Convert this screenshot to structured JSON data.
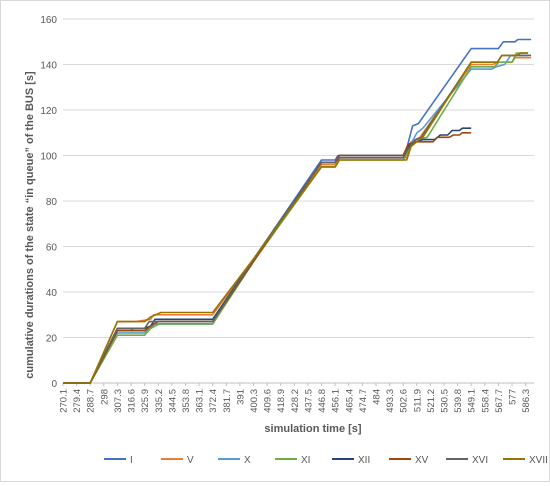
{
  "chart_data": {
    "type": "line",
    "title": "",
    "xlabel": "simulation time [s]",
    "ylabel": "cumulative durations of the state “in queue” of the BUS [s]",
    "ylim": [
      0,
      160
    ],
    "yticks": [
      "0",
      "20",
      "40",
      "60",
      "80",
      "100",
      "120",
      "140",
      "160"
    ],
    "grid": "horizontal",
    "legend_position": "bottom",
    "xlim": [
      270.1,
      592
    ],
    "xticks": [
      "270.1",
      "279.4",
      "288.7",
      "298",
      "307.3",
      "316.6",
      "325.9",
      "335.2",
      "344.5",
      "353.8",
      "363.1",
      "372.4",
      "381.7",
      "391",
      "400.3",
      "409.6",
      "418.9",
      "428.2",
      "437.5",
      "446.8",
      "456.1",
      "465.4",
      "474.7",
      "484",
      "493.3",
      "502.6",
      "511.9",
      "521.2",
      "530.5",
      "539.8",
      "549.1",
      "558.4",
      "567.7",
      "577",
      "586.3"
    ],
    "series": [
      {
        "name": "I",
        "color": "#4472C4",
        "points": [
          [
            270.1,
            0
          ],
          [
            288.7,
            0
          ],
          [
            307.3,
            23
          ],
          [
            316.6,
            23
          ],
          [
            318,
            24
          ],
          [
            330,
            24
          ],
          [
            332,
            26
          ],
          [
            372.4,
            26
          ],
          [
            402,
            56
          ],
          [
            446.8,
            98
          ],
          [
            456.1,
            98
          ],
          [
            458,
            100
          ],
          [
            502.6,
            100
          ],
          [
            505,
            103
          ],
          [
            509,
            113
          ],
          [
            513,
            114
          ],
          [
            549.1,
            147
          ],
          [
            567.7,
            147
          ],
          [
            571,
            150
          ],
          [
            579,
            150
          ],
          [
            581,
            151
          ],
          [
            590,
            151
          ]
        ]
      },
      {
        "name": "V",
        "color": "#ED7D31",
        "points": [
          [
            270.1,
            0
          ],
          [
            288.7,
            0
          ],
          [
            307.3,
            27
          ],
          [
            320,
            27
          ],
          [
            330,
            28
          ],
          [
            332,
            30
          ],
          [
            372.4,
            30
          ],
          [
            402,
            56
          ],
          [
            446.8,
            96
          ],
          [
            456.1,
            96
          ],
          [
            459,
            99
          ],
          [
            505,
            99
          ],
          [
            508,
            106
          ],
          [
            514,
            108
          ],
          [
            549.1,
            140
          ],
          [
            564,
            140
          ],
          [
            567,
            141
          ],
          [
            577,
            141
          ],
          [
            579,
            143
          ],
          [
            590,
            143
          ]
        ]
      },
      {
        "name": "X",
        "color": "#5B9BD5",
        "points": [
          [
            270.1,
            0
          ],
          [
            288.7,
            0
          ],
          [
            307.3,
            22
          ],
          [
            325.9,
            22
          ],
          [
            329,
            24
          ],
          [
            333,
            26
          ],
          [
            372.4,
            26
          ],
          [
            402,
            56
          ],
          [
            446.8,
            97
          ],
          [
            456.1,
            97
          ],
          [
            459,
            100
          ],
          [
            502.6,
            100
          ],
          [
            507,
            104
          ],
          [
            512,
            110
          ],
          [
            516,
            112
          ],
          [
            549.1,
            138
          ],
          [
            563,
            138
          ],
          [
            566,
            139
          ],
          [
            572,
            140
          ],
          [
            576,
            144
          ],
          [
            588,
            144
          ]
        ]
      },
      {
        "name": "XI",
        "color": "#70AD47",
        "points": [
          [
            270.1,
            0
          ],
          [
            288.7,
            0
          ],
          [
            307.3,
            21
          ],
          [
            325.9,
            21
          ],
          [
            330,
            24
          ],
          [
            336,
            26
          ],
          [
            372.4,
            26
          ],
          [
            402,
            55
          ],
          [
            446.8,
            95
          ],
          [
            456.1,
            95
          ],
          [
            459,
            98
          ],
          [
            502.6,
            98
          ],
          [
            507,
            103
          ],
          [
            511,
            107
          ],
          [
            519,
            108
          ],
          [
            549.1,
            139
          ],
          [
            565,
            139
          ],
          [
            568,
            141
          ],
          [
            577,
            141
          ],
          [
            580,
            145
          ],
          [
            588,
            145
          ]
        ]
      },
      {
        "name": "XII",
        "color": "#264478",
        "points": [
          [
            270.1,
            0
          ],
          [
            288.7,
            0
          ],
          [
            307.3,
            24
          ],
          [
            325.9,
            24
          ],
          [
            330,
            25
          ],
          [
            333,
            28
          ],
          [
            372.4,
            28
          ],
          [
            402,
            56
          ],
          [
            446.8,
            97
          ],
          [
            456.1,
            97
          ],
          [
            459,
            100
          ],
          [
            502.6,
            100
          ],
          [
            507,
            105
          ],
          [
            511,
            106
          ],
          [
            516,
            107
          ],
          [
            524,
            107
          ],
          [
            528,
            109
          ],
          [
            533,
            109
          ],
          [
            536,
            111
          ],
          [
            541,
            111
          ],
          [
            543,
            112
          ],
          [
            549.1,
            112
          ]
        ]
      },
      {
        "name": "XV",
        "color": "#9E480E",
        "points": [
          [
            270.1,
            0
          ],
          [
            288.7,
            0
          ],
          [
            307.3,
            23
          ],
          [
            325.9,
            23
          ],
          [
            330,
            25
          ],
          [
            335,
            27
          ],
          [
            372.4,
            27
          ],
          [
            402,
            55
          ],
          [
            446.8,
            97
          ],
          [
            456.1,
            97
          ],
          [
            459,
            100
          ],
          [
            502.6,
            100
          ],
          [
            506,
            105
          ],
          [
            511,
            106
          ],
          [
            523,
            106
          ],
          [
            526,
            108
          ],
          [
            534,
            108
          ],
          [
            537,
            109
          ],
          [
            541,
            109
          ],
          [
            543,
            110
          ],
          [
            549.1,
            110
          ]
        ]
      },
      {
        "name": "XVI",
        "color": "#636363",
        "points": [
          [
            270.1,
            0
          ],
          [
            288.7,
            0
          ],
          [
            307.3,
            24
          ],
          [
            325.9,
            24
          ],
          [
            329,
            27
          ],
          [
            372.4,
            27
          ],
          [
            402,
            56
          ],
          [
            446.8,
            97
          ],
          [
            456.1,
            97
          ],
          [
            459,
            99
          ],
          [
            502.6,
            99
          ],
          [
            506,
            103
          ],
          [
            511,
            107
          ],
          [
            515,
            108
          ],
          [
            549.1,
            141
          ],
          [
            567,
            141
          ],
          [
            570,
            144
          ],
          [
            590,
            144
          ]
        ]
      },
      {
        "name": "XVII",
        "color": "#997300",
        "points": [
          [
            270.1,
            0
          ],
          [
            288.7,
            0
          ],
          [
            307.3,
            27
          ],
          [
            325.9,
            27
          ],
          [
            330,
            29
          ],
          [
            337,
            31
          ],
          [
            372.4,
            31
          ],
          [
            402,
            56
          ],
          [
            446.8,
            95
          ],
          [
            456.1,
            95
          ],
          [
            459,
            98
          ],
          [
            505,
            98
          ],
          [
            508,
            104
          ],
          [
            512,
            106
          ],
          [
            516,
            108
          ],
          [
            549.1,
            141
          ],
          [
            567,
            141
          ],
          [
            570,
            144
          ],
          [
            580,
            144
          ],
          [
            583,
            145
          ],
          [
            588,
            145
          ]
        ]
      }
    ]
  }
}
